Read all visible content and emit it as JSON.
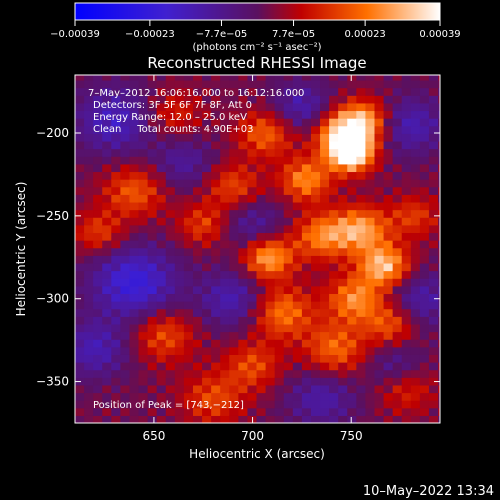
{
  "chart_data": {
    "type": "heatmap",
    "title": "Reconstructed RHESSI Image",
    "xlabel": "Heliocentric X (arcsec)",
    "ylabel": "Heliocentric Y (arcsec)",
    "xlim": [
      610,
      795
    ],
    "ylim": [
      -375,
      -165
    ],
    "x_ticks": [
      650,
      700,
      750
    ],
    "x_tick_labels": [
      "650",
      "700",
      "750"
    ],
    "y_ticks": [
      -200,
      -250,
      -300,
      -350
    ],
    "y_tick_labels": [
      "−200",
      "−250",
      "−300",
      "−350"
    ],
    "colorbar": {
      "range": [
        -0.00039,
        0.00039
      ],
      "ticks": [
        -0.00039,
        -0.00023,
        -7.7e-05,
        7.7e-05,
        0.00023,
        0.00039
      ],
      "tick_labels": [
        "−0.00039",
        "−0.00023",
        "−7.7e−05",
        "7.7e−05",
        "0.00023",
        "0.00039"
      ],
      "unit_label": "(photons cm⁻² s⁻¹ asec⁻²)"
    },
    "annotations": [
      "7–May–2012 16:06:16.000 to 16:12:16.000",
      "Detectors: 3F 5F 6F 7F 8F, Att 0",
      "Energy Range: 12.0 – 25.0 keV",
      "Clean     Total counts: 4.90E+03"
    ],
    "peak": {
      "x": 743,
      "y": -212,
      "label": "Position of Peak = [743,−212]"
    },
    "blobs": [
      {
        "x": 750,
        "y": -212,
        "v": 0.00038,
        "r": 8
      },
      {
        "x": 745,
        "y": -200,
        "v": 0.0003,
        "r": 10
      },
      {
        "x": 757,
        "y": -192,
        "v": 0.00024,
        "r": 9
      },
      {
        "x": 727,
        "y": -228,
        "v": 0.00024,
        "r": 9
      },
      {
        "x": 707,
        "y": -200,
        "v": 0.0002,
        "r": 10
      },
      {
        "x": 755,
        "y": -258,
        "v": 0.00026,
        "r": 10
      },
      {
        "x": 767,
        "y": -280,
        "v": 0.0003,
        "r": 9
      },
      {
        "x": 752,
        "y": -300,
        "v": 0.00024,
        "r": 10
      },
      {
        "x": 735,
        "y": -262,
        "v": 0.00022,
        "r": 10
      },
      {
        "x": 708,
        "y": -275,
        "v": 0.00028,
        "r": 9
      },
      {
        "x": 715,
        "y": -308,
        "v": 0.00022,
        "r": 11
      },
      {
        "x": 742,
        "y": -330,
        "v": 0.0002,
        "r": 11
      },
      {
        "x": 770,
        "y": -315,
        "v": 0.00018,
        "r": 9
      },
      {
        "x": 690,
        "y": -232,
        "v": 0.00016,
        "r": 10
      },
      {
        "x": 675,
        "y": -255,
        "v": 0.00015,
        "r": 9
      },
      {
        "x": 640,
        "y": -235,
        "v": 0.00018,
        "r": 11
      },
      {
        "x": 622,
        "y": -260,
        "v": 0.00015,
        "r": 9
      },
      {
        "x": 655,
        "y": -322,
        "v": 0.00017,
        "r": 11
      },
      {
        "x": 680,
        "y": -360,
        "v": 0.00016,
        "r": 11
      },
      {
        "x": 700,
        "y": -340,
        "v": 0.00016,
        "r": 10
      },
      {
        "x": 660,
        "y": -188,
        "v": 0.00012,
        "r": 10
      },
      {
        "x": 782,
        "y": -250,
        "v": 0.00014,
        "r": 9
      },
      {
        "x": 778,
        "y": -355,
        "v": 0.00012,
        "r": 10
      },
      {
        "x": 630,
        "y": -192,
        "v": -0.00018,
        "r": 14
      },
      {
        "x": 640,
        "y": -290,
        "v": -0.00024,
        "r": 15
      },
      {
        "x": 620,
        "y": -330,
        "v": -0.00016,
        "r": 12
      },
      {
        "x": 690,
        "y": -300,
        "v": -0.00016,
        "r": 12
      },
      {
        "x": 700,
        "y": -255,
        "v": -0.00012,
        "r": 11
      },
      {
        "x": 725,
        "y": -185,
        "v": -0.00016,
        "r": 11
      },
      {
        "x": 780,
        "y": -195,
        "v": -0.00016,
        "r": 12
      },
      {
        "x": 785,
        "y": -300,
        "v": -0.00014,
        "r": 12
      },
      {
        "x": 735,
        "y": -360,
        "v": -0.00014,
        "r": 12
      },
      {
        "x": 772,
        "y": -340,
        "v": -0.0001,
        "r": 10
      },
      {
        "x": 665,
        "y": -218,
        "v": -0.00012,
        "r": 11
      }
    ]
  },
  "footer": {
    "timestamp": "10–May–2022 13:34"
  }
}
